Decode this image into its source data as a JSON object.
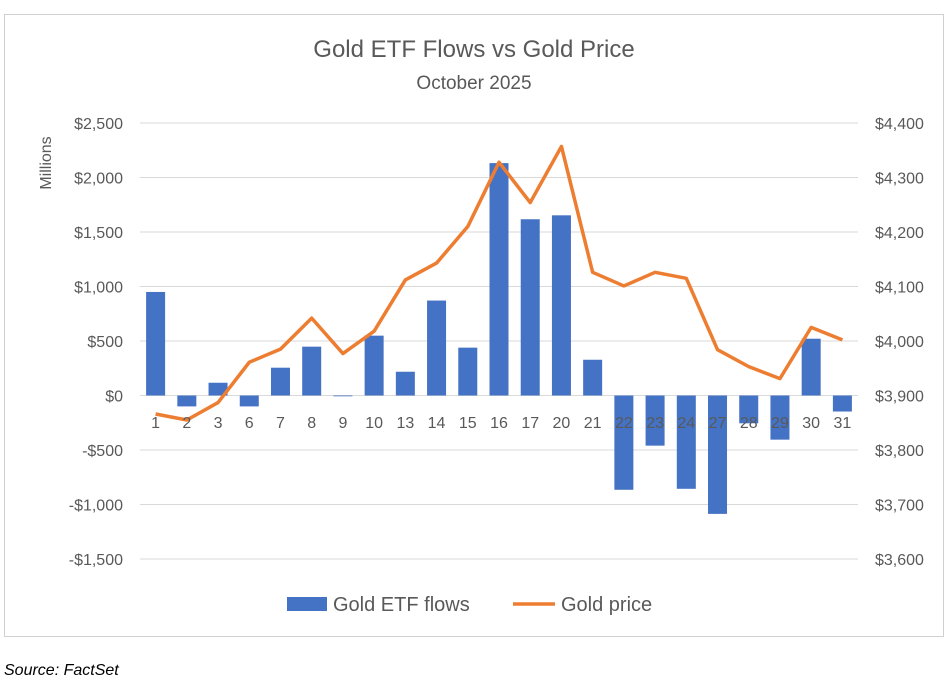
{
  "chart_data": {
    "type": "bar+line",
    "title": "Gold ETF Flows vs Gold Price",
    "subtitle": "October 2025",
    "ylabel_left": "Millions",
    "categories": [
      "1",
      "2",
      "3",
      "6",
      "7",
      "8",
      "9",
      "10",
      "13",
      "14",
      "15",
      "16",
      "17",
      "20",
      "21",
      "22",
      "23",
      "24",
      "27",
      "28",
      "29",
      "30",
      "31"
    ],
    "y_left": {
      "range": [
        -1500,
        2500
      ],
      "ticks": [
        2500,
        2000,
        1500,
        1000,
        500,
        0,
        -500,
        -1000,
        -1500
      ],
      "tick_labels": [
        "$2,500",
        "$2,000",
        "$1,500",
        "$1,000",
        "$500",
        "$0",
        "-$500",
        "-$1,000",
        "-$1,500"
      ]
    },
    "y_right": {
      "range": [
        3600,
        4400
      ],
      "ticks": [
        4400,
        4300,
        4200,
        4100,
        4000,
        3900,
        3800,
        3700,
        3600
      ],
      "tick_labels": [
        "$4,400",
        "$4,300",
        "$4,200",
        "$4,100",
        "$4,000",
        "$3,900",
        "$3,800",
        "$3,700",
        "$3,600"
      ]
    },
    "grid": true,
    "legend": "bottom",
    "series": [
      {
        "name": "Gold ETF flows",
        "type": "bar",
        "axis": "left",
        "color": "#4472C4",
        "values": [
          950,
          -100,
          117,
          -100,
          255,
          448,
          -5,
          549,
          218,
          871,
          439,
          2132,
          1617,
          1653,
          328,
          -865,
          -460,
          -856,
          -1086,
          -255,
          -405,
          521,
          -147
        ]
      },
      {
        "name": "Gold price",
        "type": "line",
        "axis": "right",
        "color": "#ED7D31",
        "values": [
          3866,
          3855,
          3887,
          3961,
          3985,
          4042,
          3977,
          4018,
          4112,
          4143,
          4210,
          4328,
          4254,
          4357,
          4126,
          4101,
          4126,
          4115,
          3984,
          3953,
          3931,
          4025,
          4002
        ]
      }
    ]
  },
  "source": "Source: FactSet"
}
